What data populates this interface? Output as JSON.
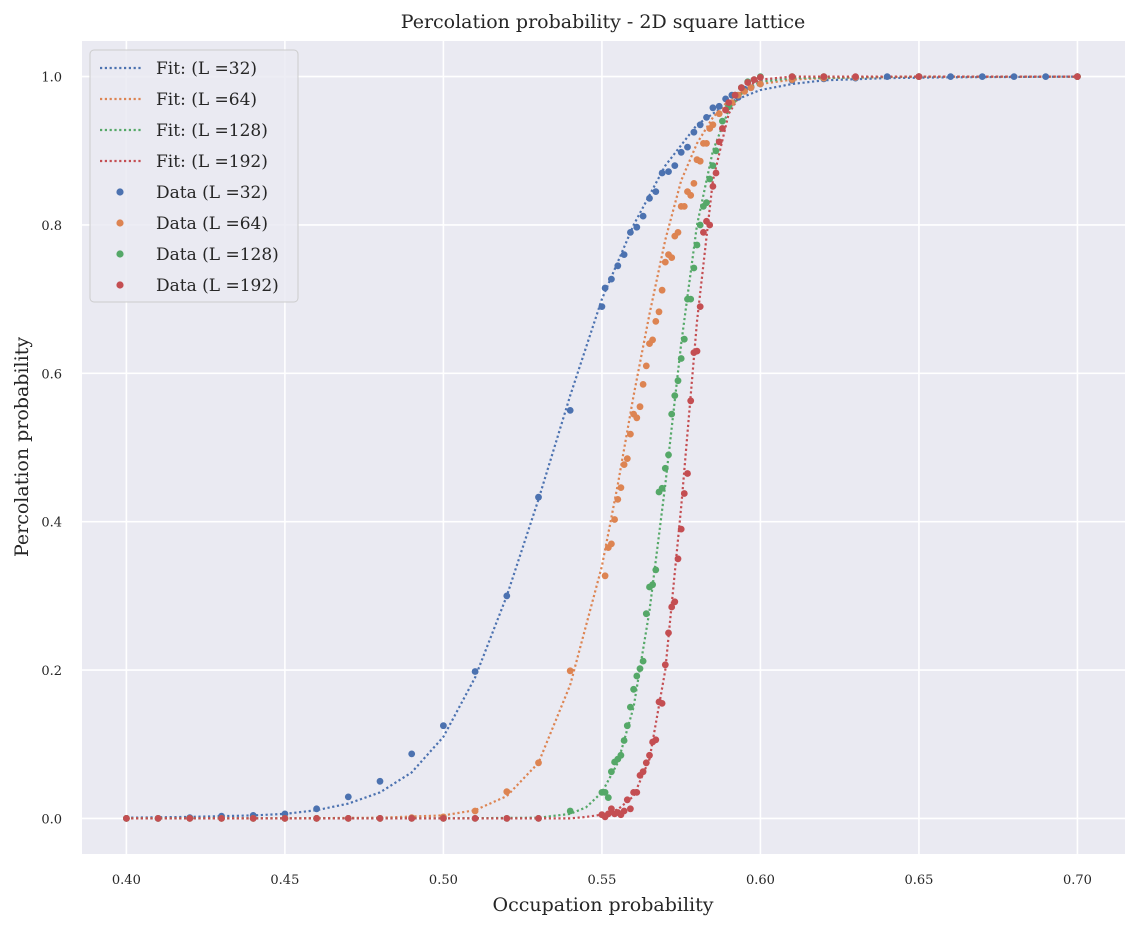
{
  "chart_data": {
    "type": "scatter",
    "title": "Percolation probability - 2D square lattice",
    "xlabel": "Occupation probability",
    "ylabel": "Percolation probability",
    "xlim": [
      0.386,
      0.715
    ],
    "ylim": [
      -0.048,
      1.048
    ],
    "xticks": [
      "0.40",
      "0.45",
      "0.50",
      "0.55",
      "0.60",
      "0.65",
      "0.70"
    ],
    "yticks": [
      "0.0",
      "0.2",
      "0.4",
      "0.6",
      "0.8",
      "1.0"
    ],
    "grid": true,
    "legend_position": "top-left",
    "legend": [
      {
        "label": "Fit: (L =32)",
        "kind": "line",
        "color": "#4c72b0"
      },
      {
        "label": "Fit: (L =64)",
        "kind": "line",
        "color": "#dd8452"
      },
      {
        "label": "Fit: (L =128)",
        "kind": "line",
        "color": "#55a868"
      },
      {
        "label": "Fit: (L =192)",
        "kind": "line",
        "color": "#c44e52"
      },
      {
        "label": "Data (L =32)",
        "kind": "marker",
        "color": "#4c72b0"
      },
      {
        "label": "Data (L =64)",
        "kind": "marker",
        "color": "#dd8452"
      },
      {
        "label": "Data (L =128)",
        "kind": "marker",
        "color": "#55a868"
      },
      {
        "label": "Data (L =192)",
        "kind": "marker",
        "color": "#c44e52"
      }
    ],
    "fits": [
      {
        "name": "Fit: (L =32)",
        "color": "#4c72b0",
        "line_style": "dotted",
        "x": [
          0.4,
          0.42,
          0.44,
          0.45,
          0.46,
          0.47,
          0.48,
          0.49,
          0.5,
          0.51,
          0.52,
          0.53,
          0.54,
          0.55,
          0.56,
          0.57,
          0.58,
          0.59,
          0.6,
          0.61,
          0.62,
          0.64,
          0.66,
          0.7
        ],
        "y": [
          0.001,
          0.002,
          0.004,
          0.006,
          0.011,
          0.02,
          0.035,
          0.062,
          0.11,
          0.19,
          0.3,
          0.43,
          0.57,
          0.7,
          0.8,
          0.88,
          0.935,
          0.965,
          0.982,
          0.99,
          0.995,
          0.998,
          0.999,
          1.0
        ]
      },
      {
        "name": "Fit: (L =64)",
        "color": "#dd8452",
        "line_style": "dotted",
        "x": [
          0.4,
          0.45,
          0.48,
          0.5,
          0.51,
          0.52,
          0.53,
          0.54,
          0.55,
          0.555,
          0.56,
          0.565,
          0.57,
          0.575,
          0.58,
          0.585,
          0.59,
          0.595,
          0.6,
          0.61,
          0.62,
          0.65,
          0.7
        ],
        "y": [
          0.0,
          0.0,
          0.001,
          0.004,
          0.011,
          0.03,
          0.075,
          0.18,
          0.34,
          0.45,
          0.57,
          0.68,
          0.78,
          0.86,
          0.91,
          0.945,
          0.968,
          0.982,
          0.99,
          0.996,
          0.998,
          1.0,
          1.0
        ]
      },
      {
        "name": "Fit: (L =128)",
        "color": "#55a868",
        "line_style": "dotted",
        "x": [
          0.4,
          0.5,
          0.53,
          0.54,
          0.545,
          0.55,
          0.555,
          0.56,
          0.565,
          0.57,
          0.575,
          0.58,
          0.585,
          0.59,
          0.595,
          0.6,
          0.61,
          0.65,
          0.7
        ],
        "y": [
          0.0,
          0.0,
          0.001,
          0.006,
          0.015,
          0.035,
          0.075,
          0.15,
          0.28,
          0.45,
          0.64,
          0.8,
          0.9,
          0.955,
          0.982,
          0.993,
          0.998,
          1.0,
          1.0
        ]
      },
      {
        "name": "Fit: (L =192)",
        "color": "#c44e52",
        "line_style": "dotted",
        "x": [
          0.4,
          0.54,
          0.545,
          0.55,
          0.555,
          0.56,
          0.565,
          0.57,
          0.575,
          0.58,
          0.585,
          0.59,
          0.595,
          0.6,
          0.61,
          0.65,
          0.7
        ],
        "y": [
          0.0,
          0.0,
          0.002,
          0.005,
          0.012,
          0.03,
          0.08,
          0.2,
          0.42,
          0.67,
          0.86,
          0.95,
          0.985,
          0.996,
          1.0,
          1.0,
          1.0
        ]
      }
    ],
    "series": [
      {
        "name": "Data (L =32)",
        "color": "#4c72b0",
        "x": [
          0.4,
          0.41,
          0.42,
          0.43,
          0.44,
          0.45,
          0.46,
          0.47,
          0.48,
          0.49,
          0.5,
          0.51,
          0.52,
          0.53,
          0.54,
          0.55,
          0.551,
          0.553,
          0.555,
          0.557,
          0.559,
          0.561,
          0.563,
          0.565,
          0.567,
          0.569,
          0.571,
          0.573,
          0.575,
          0.577,
          0.579,
          0.581,
          0.583,
          0.585,
          0.587,
          0.589,
          0.591,
          0.593,
          0.595,
          0.597,
          0.6,
          0.61,
          0.62,
          0.63,
          0.64,
          0.65,
          0.66,
          0.67,
          0.68,
          0.69,
          0.7
        ],
        "y": [
          0.0,
          0.0,
          0.001,
          0.003,
          0.004,
          0.006,
          0.013,
          0.029,
          0.05,
          0.087,
          0.125,
          0.198,
          0.3,
          0.433,
          0.55,
          0.69,
          0.715,
          0.727,
          0.745,
          0.76,
          0.79,
          0.797,
          0.812,
          0.836,
          0.845,
          0.87,
          0.872,
          0.88,
          0.898,
          0.905,
          0.925,
          0.935,
          0.945,
          0.958,
          0.96,
          0.97,
          0.975,
          0.972,
          0.983,
          0.985,
          0.99,
          0.995,
          0.997,
          0.998,
          1.0,
          1.0,
          1.0,
          1.0,
          1.0,
          1.0,
          1.0
        ]
      },
      {
        "name": "Data (L =64)",
        "color": "#dd8452",
        "x": [
          0.4,
          0.41,
          0.42,
          0.43,
          0.44,
          0.45,
          0.46,
          0.47,
          0.48,
          0.49,
          0.5,
          0.51,
          0.52,
          0.53,
          0.54,
          0.551,
          0.552,
          0.553,
          0.554,
          0.555,
          0.556,
          0.557,
          0.558,
          0.559,
          0.56,
          0.561,
          0.562,
          0.563,
          0.564,
          0.565,
          0.566,
          0.567,
          0.568,
          0.569,
          0.57,
          0.571,
          0.572,
          0.573,
          0.574,
          0.575,
          0.576,
          0.577,
          0.578,
          0.579,
          0.58,
          0.581,
          0.582,
          0.583,
          0.584,
          0.585,
          0.587,
          0.589,
          0.591,
          0.593,
          0.595,
          0.597,
          0.6,
          0.61,
          0.62,
          0.63,
          0.65,
          0.7
        ],
        "y": [
          0.0,
          0.0,
          0.0,
          0.0,
          0.0,
          0.0,
          0.0,
          0.0,
          0.0,
          0.001,
          0.002,
          0.01,
          0.036,
          0.075,
          0.199,
          0.327,
          0.365,
          0.37,
          0.403,
          0.43,
          0.446,
          0.477,
          0.485,
          0.518,
          0.545,
          0.54,
          0.555,
          0.585,
          0.61,
          0.64,
          0.645,
          0.67,
          0.683,
          0.712,
          0.75,
          0.76,
          0.756,
          0.785,
          0.79,
          0.825,
          0.825,
          0.845,
          0.84,
          0.856,
          0.888,
          0.886,
          0.91,
          0.91,
          0.93,
          0.935,
          0.95,
          0.955,
          0.965,
          0.975,
          0.98,
          0.985,
          0.99,
          0.996,
          0.998,
          0.999,
          1.0,
          1.0
        ]
      },
      {
        "name": "Data (L =128)",
        "color": "#55a868",
        "x": [
          0.4,
          0.41,
          0.42,
          0.43,
          0.44,
          0.45,
          0.46,
          0.47,
          0.48,
          0.49,
          0.5,
          0.51,
          0.52,
          0.53,
          0.54,
          0.55,
          0.551,
          0.552,
          0.553,
          0.554,
          0.555,
          0.556,
          0.557,
          0.558,
          0.559,
          0.56,
          0.561,
          0.562,
          0.563,
          0.564,
          0.565,
          0.566,
          0.567,
          0.568,
          0.569,
          0.57,
          0.571,
          0.572,
          0.573,
          0.574,
          0.575,
          0.576,
          0.577,
          0.578,
          0.579,
          0.58,
          0.581,
          0.582,
          0.583,
          0.584,
          0.585,
          0.586,
          0.588,
          0.59,
          0.592,
          0.594,
          0.596,
          0.598,
          0.6,
          0.61,
          0.62,
          0.65,
          0.7
        ],
        "y": [
          0.0,
          0.0,
          0.0,
          0.0,
          0.0,
          0.0,
          0.0,
          0.0,
          0.0,
          0.0,
          0.0,
          0.0,
          0.0,
          0.0,
          0.01,
          0.035,
          0.035,
          0.028,
          0.063,
          0.076,
          0.08,
          0.085,
          0.105,
          0.125,
          0.15,
          0.174,
          0.192,
          0.202,
          0.212,
          0.276,
          0.312,
          0.315,
          0.335,
          0.44,
          0.445,
          0.472,
          0.49,
          0.545,
          0.57,
          0.59,
          0.62,
          0.646,
          0.7,
          0.7,
          0.742,
          0.773,
          0.8,
          0.825,
          0.83,
          0.862,
          0.88,
          0.9,
          0.94,
          0.96,
          0.975,
          0.985,
          0.993,
          0.996,
          1.0,
          1.0,
          1.0,
          1.0,
          1.0
        ]
      },
      {
        "name": "Data (L =192)",
        "color": "#c44e52",
        "x": [
          0.4,
          0.41,
          0.42,
          0.43,
          0.44,
          0.45,
          0.46,
          0.47,
          0.48,
          0.49,
          0.5,
          0.51,
          0.52,
          0.53,
          0.55,
          0.551,
          0.552,
          0.553,
          0.554,
          0.555,
          0.556,
          0.557,
          0.558,
          0.559,
          0.56,
          0.561,
          0.562,
          0.563,
          0.564,
          0.565,
          0.566,
          0.567,
          0.568,
          0.569,
          0.57,
          0.571,
          0.572,
          0.573,
          0.574,
          0.575,
          0.576,
          0.577,
          0.578,
          0.579,
          0.58,
          0.581,
          0.582,
          0.583,
          0.584,
          0.585,
          0.586,
          0.587,
          0.588,
          0.589,
          0.59,
          0.592,
          0.594,
          0.596,
          0.598,
          0.6,
          0.61,
          0.62,
          0.63,
          0.65,
          0.7
        ],
        "y": [
          0.0,
          0.0,
          0.0,
          0.0,
          0.0,
          0.0,
          0.0,
          0.0,
          0.0,
          0.0,
          0.0,
          0.0,
          0.0,
          0.0,
          0.005,
          0.002,
          0.006,
          0.013,
          0.006,
          0.008,
          0.005,
          0.01,
          0.025,
          0.013,
          0.035,
          0.035,
          0.058,
          0.063,
          0.075,
          0.085,
          0.103,
          0.106,
          0.157,
          0.155,
          0.207,
          0.25,
          0.285,
          0.292,
          0.35,
          0.39,
          0.438,
          0.465,
          0.563,
          0.628,
          0.63,
          0.69,
          0.79,
          0.805,
          0.8,
          0.852,
          0.87,
          0.912,
          0.93,
          0.955,
          0.965,
          0.975,
          0.985,
          0.992,
          0.996,
          0.999,
          1.0,
          1.0,
          1.0,
          1.0,
          1.0
        ]
      }
    ]
  }
}
